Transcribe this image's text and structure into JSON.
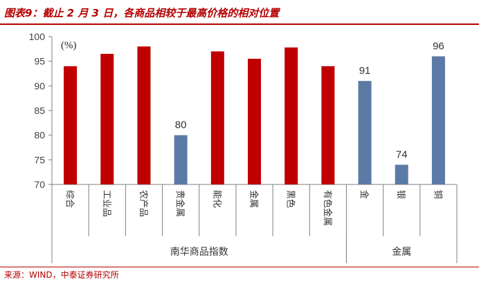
{
  "title": "图表9：截止 2 月 3 日，各商品相较于最高价格的相对位置",
  "source": "来源：WIND，中泰证券研究所",
  "colors": {
    "accent": "#b50000",
    "bar_red": "#c00000",
    "bar_blue": "#5b7aa6",
    "axis": "#7f7f7f"
  },
  "chart_data": {
    "type": "bar",
    "unit_label": "(%)",
    "ylim": [
      70,
      100
    ],
    "yticks": [
      "70",
      "75",
      "80",
      "85",
      "90",
      "95",
      "100"
    ],
    "categories": [
      "综合",
      "工业品",
      "农产品",
      "贵金属",
      "能化",
      "金属",
      "黑色",
      "有色金属",
      "金",
      "银",
      "铜"
    ],
    "values": [
      94,
      96.5,
      98,
      80,
      97,
      95.5,
      97.8,
      94,
      91,
      74,
      96
    ],
    "bar_colors": [
      "red",
      "red",
      "red",
      "blue",
      "red",
      "red",
      "red",
      "red",
      "blue",
      "blue",
      "blue"
    ],
    "data_labels": [
      "",
      "",
      "",
      "80",
      "",
      "",
      "",
      "",
      "91",
      "74",
      "96"
    ],
    "groups": [
      {
        "label": "南华商品指数",
        "count": 8
      },
      {
        "label": "金属",
        "count": 3
      }
    ],
    "grid": false,
    "legend": "none"
  }
}
